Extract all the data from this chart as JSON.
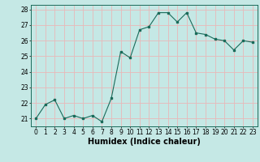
{
  "x": [
    0,
    1,
    2,
    3,
    4,
    5,
    6,
    7,
    8,
    9,
    10,
    11,
    12,
    13,
    14,
    15,
    16,
    17,
    18,
    19,
    20,
    21,
    22,
    23
  ],
  "y": [
    21.0,
    21.9,
    22.2,
    21.0,
    21.2,
    21.0,
    21.2,
    20.8,
    22.3,
    25.3,
    24.9,
    26.7,
    26.9,
    27.8,
    27.8,
    27.2,
    27.8,
    26.5,
    26.4,
    26.1,
    26.0,
    25.4,
    26.0,
    25.9
  ],
  "line_color": "#1a6b5a",
  "marker": "s",
  "markersize": 1.8,
  "linewidth": 0.8,
  "xlabel": "Humidex (Indice chaleur)",
  "xlabel_fontsize": 7,
  "ylim": [
    20.5,
    28.3
  ],
  "xlim": [
    -0.5,
    23.5
  ],
  "yticks": [
    21,
    22,
    23,
    24,
    25,
    26,
    27,
    28
  ],
  "xticks": [
    0,
    1,
    2,
    3,
    4,
    5,
    6,
    7,
    8,
    9,
    10,
    11,
    12,
    13,
    14,
    15,
    16,
    17,
    18,
    19,
    20,
    21,
    22,
    23
  ],
  "bg_color": "#c5e8e5",
  "grid_color": "#e8b8b8",
  "tick_fontsize": 5.5,
  "fig_bg": "#c5e8e5",
  "spine_color": "#1a6b5a"
}
